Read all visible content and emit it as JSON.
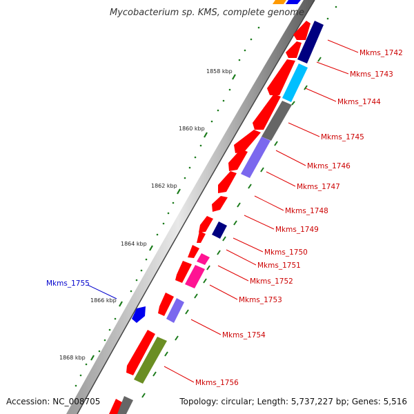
{
  "title": "Mycobacterium sp. KMS, complete genome",
  "footer": {
    "accession": "Accession: NC_008705",
    "topology": "Topology: circular; Length: 5,737,227 bp; Genes: 5,516"
  },
  "scale_labels": [
    "1858 kbp",
    "1860 kbp",
    "1862 kbp",
    "1864 kbp",
    "1866 kbp",
    "1868 kbp"
  ],
  "gene_labels": [
    {
      "name": "Mkms_1742",
      "color": "#cc0000"
    },
    {
      "name": "Mkms_1743",
      "color": "#cc0000"
    },
    {
      "name": "Mkms_1744",
      "color": "#cc0000"
    },
    {
      "name": "Mkms_1745",
      "color": "#cc0000"
    },
    {
      "name": "Mkms_1746",
      "color": "#cc0000"
    },
    {
      "name": "Mkms_1747",
      "color": "#cc0000"
    },
    {
      "name": "Mkms_1748",
      "color": "#cc0000"
    },
    {
      "name": "Mkms_1749",
      "color": "#cc0000"
    },
    {
      "name": "Mkms_1750",
      "color": "#cc0000"
    },
    {
      "name": "Mkms_1751",
      "color": "#cc0000"
    },
    {
      "name": "Mkms_1752",
      "color": "#cc0000"
    },
    {
      "name": "Mkms_1753",
      "color": "#cc0000"
    },
    {
      "name": "Mkms_1754",
      "color": "#cc0000"
    },
    {
      "name": "Mkms_1755",
      "color": "#0000cc"
    },
    {
      "name": "Mkms_1756",
      "color": "#cc0000"
    }
  ],
  "colors": {
    "forward_cds": "#ff0000",
    "reverse_cds": "#0000ee",
    "navy": "#000080",
    "cyan": "#00bfff",
    "gray": "#666666",
    "lavender": "#7b68ee",
    "magenta": "#ff1493",
    "olive": "#6b8e23",
    "orange": "#ff9900",
    "tick": "#1a7a1a",
    "label_red": "#cc0000",
    "label_blue": "#0000cc"
  }
}
